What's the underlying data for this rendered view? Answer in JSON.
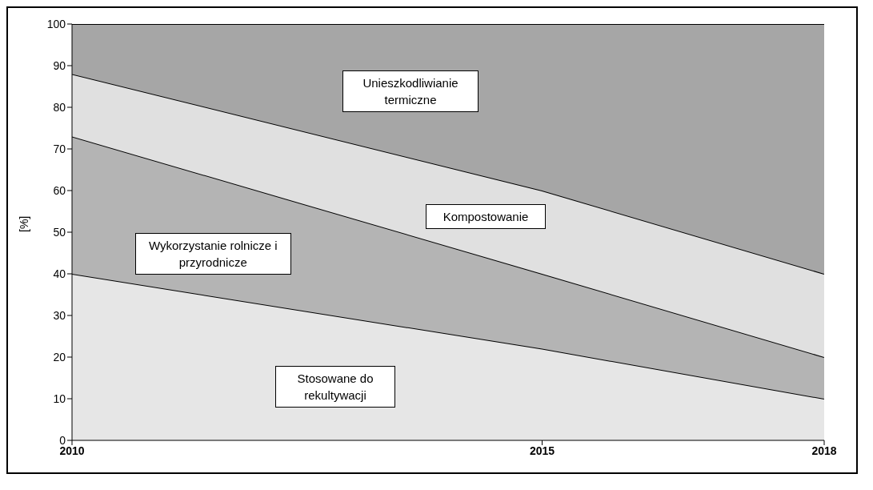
{
  "chart_data": {
    "type": "area",
    "stacked": true,
    "ylabel": "[%]",
    "x": [
      2010,
      2015,
      2018
    ],
    "xlim": [
      2010,
      2018
    ],
    "xticks": [
      2010,
      2015,
      2018
    ],
    "ylim": [
      0,
      100
    ],
    "yticks": [
      0,
      10,
      20,
      30,
      40,
      50,
      60,
      70,
      80,
      90,
      100
    ],
    "grid": false,
    "legend": false,
    "series": [
      {
        "name": "Stosowane do rekultywacji",
        "color": "#e6e6e6",
        "values": [
          40,
          22,
          10
        ]
      },
      {
        "name": "Wykorzystanie rolnicze i przyrodnicze",
        "color": "#b4b4b4",
        "values": [
          33,
          18,
          10
        ]
      },
      {
        "name": "Kompostowanie",
        "color": "#e0e0e0",
        "values": [
          15,
          20,
          20
        ]
      },
      {
        "name": "Unieszkodliwianie termiczne",
        "color": "#a6a6a6",
        "values": [
          12,
          40,
          60
        ]
      }
    ]
  }
}
